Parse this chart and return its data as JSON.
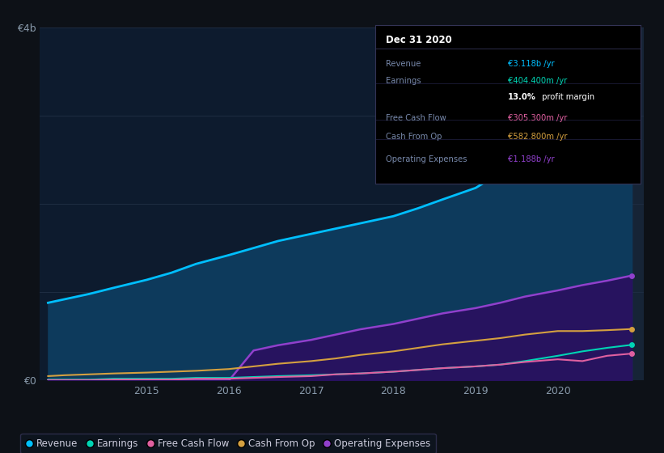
{
  "background_color": "#0d1117",
  "chart_bg_color": "#0d1b2e",
  "years": [
    2013.8,
    2014.0,
    2014.3,
    2014.6,
    2015.0,
    2015.3,
    2015.6,
    2016.0,
    2016.3,
    2016.6,
    2017.0,
    2017.3,
    2017.6,
    2018.0,
    2018.3,
    2018.6,
    2019.0,
    2019.3,
    2019.6,
    2020.0,
    2020.3,
    2020.6,
    2020.9
  ],
  "revenue": [
    0.88,
    0.92,
    0.98,
    1.05,
    1.14,
    1.22,
    1.32,
    1.42,
    1.5,
    1.58,
    1.66,
    1.72,
    1.78,
    1.86,
    1.95,
    2.05,
    2.18,
    2.35,
    2.55,
    2.72,
    2.88,
    3.02,
    3.118
  ],
  "earnings": [
    0.01,
    0.01,
    0.01,
    0.02,
    0.02,
    0.02,
    0.03,
    0.03,
    0.04,
    0.05,
    0.06,
    0.07,
    0.08,
    0.1,
    0.12,
    0.14,
    0.16,
    0.18,
    0.22,
    0.28,
    0.33,
    0.37,
    0.404
  ],
  "free_cash_flow": [
    0.005,
    0.005,
    0.005,
    0.01,
    0.01,
    0.01,
    0.02,
    0.02,
    0.03,
    0.04,
    0.05,
    0.07,
    0.08,
    0.1,
    0.12,
    0.14,
    0.16,
    0.18,
    0.21,
    0.24,
    0.22,
    0.28,
    0.305
  ],
  "cash_from_op": [
    0.05,
    0.06,
    0.07,
    0.08,
    0.09,
    0.1,
    0.11,
    0.13,
    0.16,
    0.19,
    0.22,
    0.25,
    0.29,
    0.33,
    0.37,
    0.41,
    0.45,
    0.48,
    0.52,
    0.56,
    0.56,
    0.57,
    0.583
  ],
  "op_expenses": [
    0.0,
    0.0,
    0.0,
    0.0,
    0.0,
    0.0,
    0.0,
    0.0,
    0.34,
    0.4,
    0.46,
    0.52,
    0.58,
    0.64,
    0.7,
    0.76,
    0.82,
    0.88,
    0.95,
    1.02,
    1.08,
    1.13,
    1.188
  ],
  "revenue_color": "#00bfff",
  "earnings_color": "#00d4b4",
  "fcf_color": "#e060a0",
  "cashop_color": "#d4a040",
  "opex_color": "#9040cc",
  "revenue_fill_color": "#0d3a5c",
  "opex_fill_color": "#2a1060",
  "grid_color": "#1e2d42",
  "ylim": [
    0,
    4.0
  ],
  "xlim": [
    2013.7,
    2021.05
  ],
  "yticks": [
    0,
    1.0,
    2.0,
    3.0,
    4.0
  ],
  "ytick_labels_show": [
    "€0",
    "",
    "",
    "",
    "€4b"
  ],
  "xlabel_years": [
    2015,
    2016,
    2017,
    2018,
    2019,
    2020
  ],
  "highlight_x_start": 2020.0,
  "highlight_x_end": 2021.1,
  "highlight_color": "#162436",
  "tooltip_title": "Dec 31 2020",
  "tooltip_rows": [
    {
      "label": "Revenue",
      "value": "€3.118b /yr",
      "vcolor": "#00bfff"
    },
    {
      "label": "Earnings",
      "value": "€404.400m /yr",
      "vcolor": "#00d4b4"
    },
    {
      "label": "",
      "value": "13.0% profit margin",
      "vcolor": "#ffffff"
    },
    {
      "label": "Free Cash Flow",
      "value": "€305.300m /yr",
      "vcolor": "#e060a0"
    },
    {
      "label": "Cash From Op",
      "value": "€582.800m /yr",
      "vcolor": "#d4a040"
    },
    {
      "label": "Operating Expenses",
      "value": "€1.188b /yr",
      "vcolor": "#9040cc"
    }
  ],
  "legend_items": [
    {
      "label": "Revenue",
      "color": "#00bfff"
    },
    {
      "label": "Earnings",
      "color": "#00d4b4"
    },
    {
      "label": "Free Cash Flow",
      "color": "#e060a0"
    },
    {
      "label": "Cash From Op",
      "color": "#d4a040"
    },
    {
      "label": "Operating Expenses",
      "color": "#9040cc"
    }
  ]
}
